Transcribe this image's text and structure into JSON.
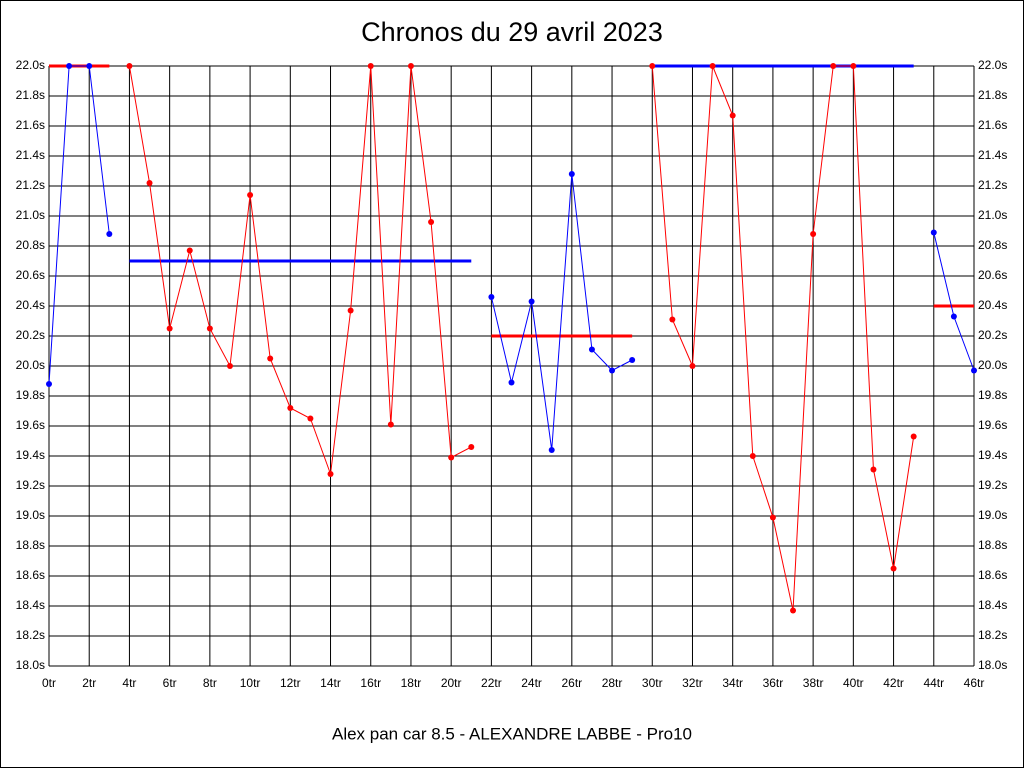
{
  "chart_data": {
    "type": "line",
    "title": "Chronos du 29 avril 2023",
    "subtitle": "Alex pan car 8.5 - ALEXANDRE LABBE - Pro10",
    "x": [
      0,
      1,
      2,
      3,
      4,
      5,
      6,
      7,
      8,
      9,
      10,
      11,
      12,
      13,
      14,
      15,
      16,
      17,
      18,
      19,
      20,
      21,
      22,
      23,
      24,
      25,
      26,
      27,
      28,
      29,
      30,
      31,
      32,
      33,
      34,
      35,
      36,
      37,
      38,
      39,
      40,
      41,
      42,
      43,
      44,
      45,
      46
    ],
    "series": [
      {
        "color": "#0000ff",
        "values": [
          19.88,
          22.0,
          22.0,
          20.88,
          null,
          null,
          null,
          null,
          null,
          null,
          null,
          null,
          null,
          null,
          null,
          null,
          null,
          null,
          null,
          null,
          null,
          null,
          20.46,
          19.89,
          20.43,
          19.44,
          21.28,
          20.11,
          19.97,
          20.04,
          null,
          null,
          null,
          null,
          null,
          null,
          null,
          null,
          null,
          null,
          null,
          null,
          null,
          null,
          20.89,
          20.33,
          19.97
        ]
      },
      {
        "color": "#ff0000",
        "values": [
          null,
          null,
          null,
          null,
          22.0,
          21.22,
          20.25,
          20.77,
          20.25,
          20.0,
          21.14,
          20.05,
          19.72,
          19.65,
          19.28,
          20.37,
          22.0,
          19.61,
          22.0,
          20.96,
          19.39,
          19.46,
          null,
          null,
          null,
          null,
          null,
          null,
          null,
          null,
          22.0,
          20.31,
          20.0,
          22.0,
          21.67,
          19.4,
          18.99,
          18.37,
          20.88,
          22.0,
          22.0,
          19.31,
          18.65,
          19.53,
          null,
          null,
          null
        ]
      }
    ],
    "reference_lines": [
      {
        "value": 22.0,
        "x": [
          0,
          3
        ],
        "color": "#ff0000"
      },
      {
        "value": 20.7,
        "x": [
          4,
          21
        ],
        "color": "#0000ff"
      },
      {
        "value": 20.2,
        "x": [
          22,
          29
        ],
        "color": "#ff0000"
      },
      {
        "value": 22.0,
        "x": [
          30,
          43
        ],
        "color": "#0000ff"
      },
      {
        "value": 20.4,
        "x": [
          44,
          46
        ],
        "color": "#ff0000"
      }
    ],
    "xlim": [
      0,
      46
    ],
    "xticks": [
      {
        "value": 0,
        "label": "0tr"
      },
      {
        "value": 2,
        "label": "2tr"
      },
      {
        "value": 4,
        "label": "4tr"
      },
      {
        "value": 6,
        "label": "6tr"
      },
      {
        "value": 8,
        "label": "8tr"
      },
      {
        "value": 10,
        "label": "10tr"
      },
      {
        "value": 12,
        "label": "12tr"
      },
      {
        "value": 14,
        "label": "14tr"
      },
      {
        "value": 16,
        "label": "16tr"
      },
      {
        "value": 18,
        "label": "18tr"
      },
      {
        "value": 20,
        "label": "20tr"
      },
      {
        "value": 22,
        "label": "22tr"
      },
      {
        "value": 24,
        "label": "24tr"
      },
      {
        "value": 26,
        "label": "26tr"
      },
      {
        "value": 28,
        "label": "28tr"
      },
      {
        "value": 30,
        "label": "30tr"
      },
      {
        "value": 32,
        "label": "32tr"
      },
      {
        "value": 34,
        "label": "34tr"
      },
      {
        "value": 36,
        "label": "36tr"
      },
      {
        "value": 38,
        "label": "38tr"
      },
      {
        "value": 40,
        "label": "40tr"
      },
      {
        "value": 42,
        "label": "42tr"
      },
      {
        "value": 44,
        "label": "44tr"
      },
      {
        "value": 46,
        "label": "46tr"
      }
    ],
    "ylim": [
      18.0,
      22.0
    ],
    "yticks": [
      {
        "value": 18.0,
        "label": "18.0s"
      },
      {
        "value": 18.2,
        "label": "18.2s"
      },
      {
        "value": 18.4,
        "label": "18.4s"
      },
      {
        "value": 18.6,
        "label": "18.6s"
      },
      {
        "value": 18.8,
        "label": "18.8s"
      },
      {
        "value": 19.0,
        "label": "19.0s"
      },
      {
        "value": 19.2,
        "label": "19.2s"
      },
      {
        "value": 19.4,
        "label": "19.4s"
      },
      {
        "value": 19.6,
        "label": "19.6s"
      },
      {
        "value": 19.8,
        "label": "19.8s"
      },
      {
        "value": 20.0,
        "label": "20.0s"
      },
      {
        "value": 20.2,
        "label": "20.2s"
      },
      {
        "value": 20.4,
        "label": "20.4s"
      },
      {
        "value": 20.6,
        "label": "20.6s"
      },
      {
        "value": 20.8,
        "label": "20.8s"
      },
      {
        "value": 21.0,
        "label": "21.0s"
      },
      {
        "value": 21.2,
        "label": "21.2s"
      },
      {
        "value": 21.4,
        "label": "21.4s"
      },
      {
        "value": 21.6,
        "label": "21.6s"
      },
      {
        "value": 21.8,
        "label": "21.8s"
      },
      {
        "value": 22.0,
        "label": "22.0s"
      }
    ],
    "grid": true
  }
}
